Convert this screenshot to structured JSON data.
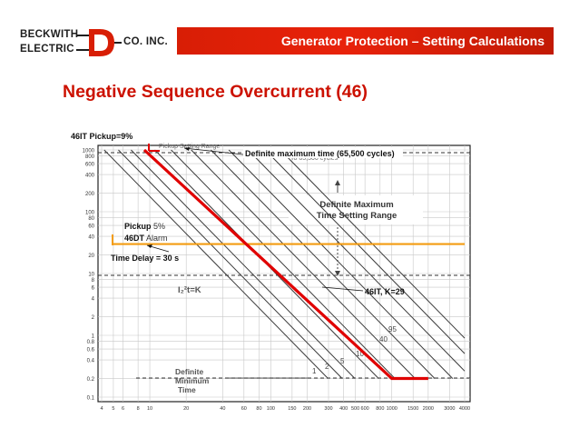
{
  "logo": {
    "line1": "BECKWITH",
    "line2": "ELECTRIC",
    "right": "CO. INC.",
    "mark": "D"
  },
  "header": {
    "title": "Generator Protection – Setting Calculations"
  },
  "slide": {
    "title": "Negative Sequence Overcurrent (46)"
  },
  "annotations": {
    "pickup_46it": "46IT Pickup=9%",
    "definite_max": "Definite maximum time (65,500 cycles)",
    "pickup_label": "Pickup",
    "pickup_value": "5%",
    "dt_label": "46DT",
    "dt_value": "Alarm",
    "time_delay": "Time Delay = 30 s",
    "k_curve": "46IT, K=29"
  },
  "chart_labels": {
    "pickup_setting_range": "Pickup Setting Range",
    "to_65500": "To 65,500 cycles",
    "def_max_1": "Definite Maximum",
    "def_max_2": "Time Setting Range",
    "i2t": "I₂²t=K",
    "def_min_1": "Definite",
    "def_min_2": "Minimum",
    "def_min_3": "Time",
    "k95": "95",
    "k40": "40",
    "k10": "10",
    "k5": "5",
    "k2": "2",
    "k1": "1"
  },
  "colors": {
    "brand_red": "#d81e05",
    "title_red": "#cc1100",
    "curve_red": "#e00000",
    "alarm_orange": "#f39c12"
  },
  "chart_data": {
    "type": "line",
    "xscale": "log",
    "yscale": "log",
    "x_ticks": [
      "4",
      "5",
      "6",
      "8",
      "10",
      "20",
      "40",
      "60",
      "80",
      "100",
      "150",
      "200",
      "300",
      "400",
      "500",
      "600",
      "800",
      "1000",
      "1500",
      "2000",
      "3000",
      "4000"
    ],
    "y_ticks": [
      "1000",
      "800",
      "600",
      "400",
      "200",
      "100",
      "80",
      "60",
      "40",
      "20",
      "10",
      "8",
      "6",
      "4",
      "2",
      "1",
      "0.8",
      "0.6",
      "0.4",
      "0.2",
      "0.1"
    ],
    "series": [
      {
        "name": "46IT, K=29",
        "points": [
          [
            9,
            1000
          ],
          [
            1000,
            0.2
          ],
          [
            2000,
            0.2
          ]
        ]
      },
      {
        "name": "46DT Alarm",
        "points": [
          [
            5,
            30
          ],
          [
            4000,
            30
          ]
        ]
      }
    ]
  }
}
